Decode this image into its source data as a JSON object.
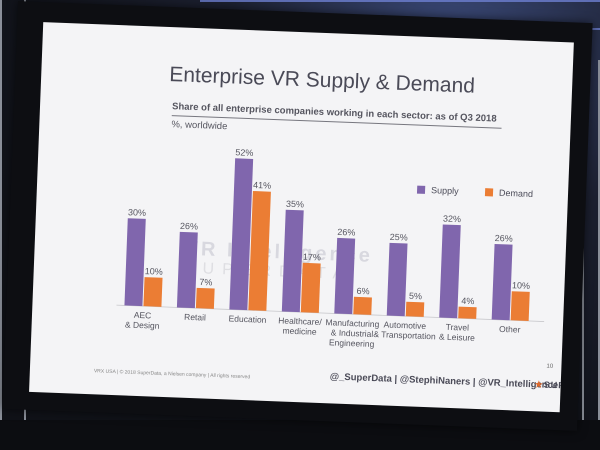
{
  "slide": {
    "title": "Enterprise VR Supply & Demand",
    "subtitle": "Share of all enterprise companies working in each sector: as of Q3 2018",
    "units": "%, worldwide",
    "watermark": "VR Intelligence",
    "watermark_sub": "SUPERDATA",
    "footer_left": "VRX USA  |  © 2018 SuperData, a Nielsen company  |  All rights reserved",
    "footer_handles": "@_SuperData  |  @StephiNaners  |  @VR_Intelligence",
    "brand": "SUPERDATA",
    "page_number": "10"
  },
  "chart_data": {
    "type": "bar",
    "categories": [
      "AEC\n& Design",
      "Retail",
      "Education",
      "Healthcare/\nmedicine",
      "Manufacturing\n& Industrial\nEngineering",
      "Automotive\n& Transportation",
      "Travel\n& Leisure",
      "Other"
    ],
    "series": [
      {
        "name": "Supply",
        "values": [
          30,
          26,
          52,
          35,
          26,
          25,
          32,
          26
        ],
        "color": "#8066ad"
      },
      {
        "name": "Demand",
        "values": [
          10,
          7,
          41,
          17,
          6,
          5,
          4,
          10
        ],
        "color": "#eb7d34"
      }
    ],
    "value_suffix": "%",
    "title": "Enterprise VR Supply & Demand",
    "xlabel": "",
    "ylabel": "%, worldwide",
    "ylim": [
      0,
      55
    ],
    "legend": "top-right"
  }
}
